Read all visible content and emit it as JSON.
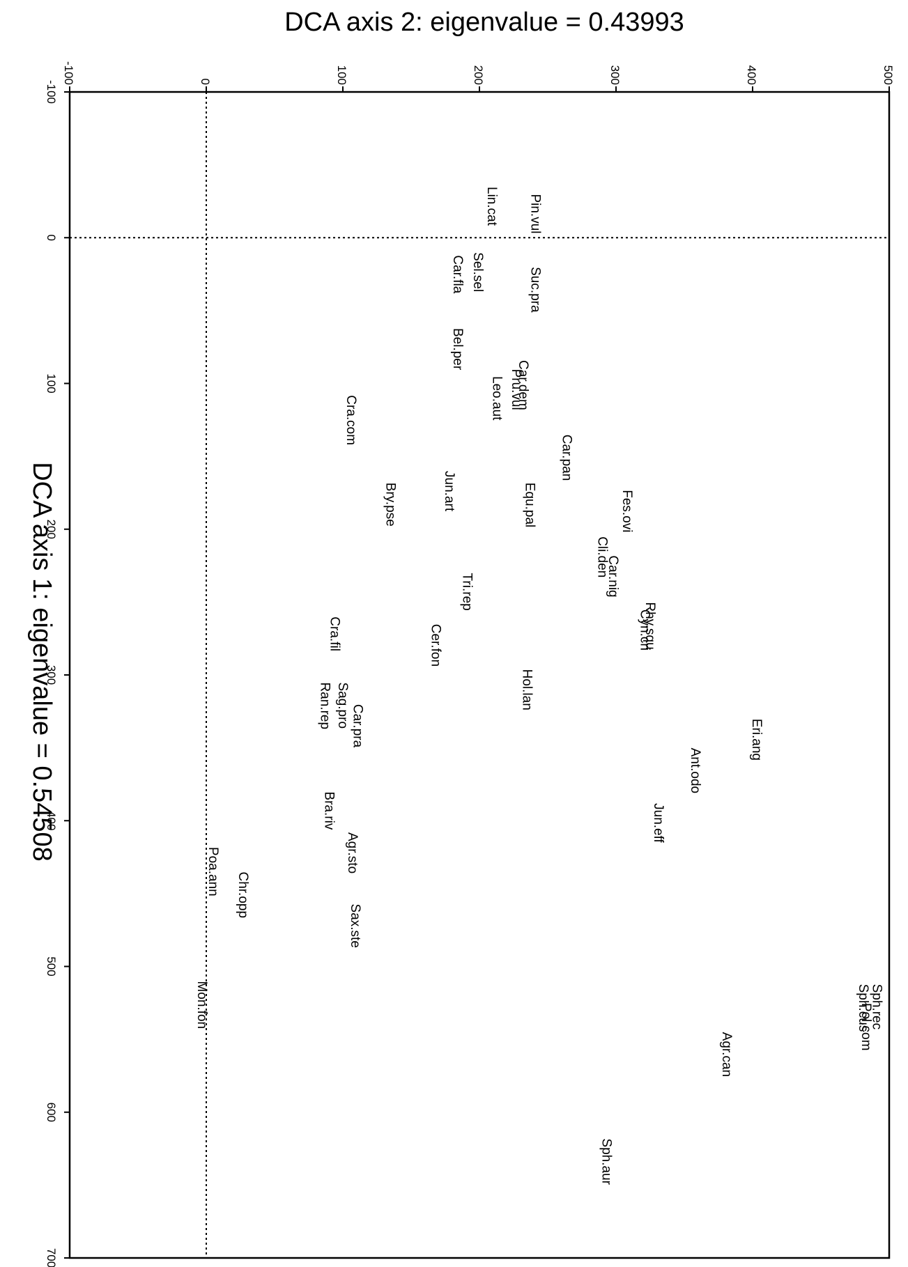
{
  "chart_data": {
    "type": "scatter",
    "orientation": "rotated-90-clockwise",
    "title": "DCA axis 2: eigenvalue = 0.43993",
    "ylabel": "DCA axis 1: eigenvalue = 0.54508",
    "axis1": {
      "label": "DCA axis 1: eigenvalue = 0.54508",
      "range": [
        -100,
        700
      ],
      "ticks": [
        -100,
        0,
        100,
        200,
        300,
        400,
        500,
        600,
        700
      ]
    },
    "axis2": {
      "label": "DCA axis 2: eigenvalue = 0.43993",
      "range": [
        -100,
        500
      ],
      "ticks": [
        -100,
        0,
        100,
        200,
        300,
        400,
        500
      ]
    },
    "reference_lines": {
      "axis1_zero": true,
      "axis2_zero": true,
      "style": "dotted"
    },
    "grid": false,
    "points": [
      {
        "label": "Lin.cat",
        "axis1": -35,
        "axis2": 206
      },
      {
        "label": "Pin.vul",
        "axis1": -30,
        "axis2": 238
      },
      {
        "label": "Suc.pra",
        "axis1": 20,
        "axis2": 238
      },
      {
        "label": "Sel.sel",
        "axis1": 10,
        "axis2": 196
      },
      {
        "label": "Car.fla",
        "axis1": 12,
        "axis2": 181
      },
      {
        "label": "Bel.per",
        "axis1": 62,
        "axis2": 181
      },
      {
        "label": "Car.dem",
        "axis1": 84,
        "axis2": 229
      },
      {
        "label": "Pru.vul",
        "axis1": 90,
        "axis2": 224
      },
      {
        "label": "Leo.aut",
        "axis1": 95,
        "axis2": 210
      },
      {
        "label": "Cra.com",
        "axis1": 108,
        "axis2": 103
      },
      {
        "label": "Car.pan",
        "axis1": 135,
        "axis2": 261
      },
      {
        "label": "Jun.art",
        "axis1": 160,
        "axis2": 175
      },
      {
        "label": "Equ.pal",
        "axis1": 168,
        "axis2": 234
      },
      {
        "label": "Bry.pse",
        "axis1": 168,
        "axis2": 132
      },
      {
        "label": "Fes.ovi",
        "axis1": 173,
        "axis2": 305
      },
      {
        "label": "Cli.den",
        "axis1": 205,
        "axis2": 287
      },
      {
        "label": "Car.nig",
        "axis1": 218,
        "axis2": 295
      },
      {
        "label": "Tri.rep",
        "axis1": 230,
        "axis2": 188
      },
      {
        "label": "Rhy.squ",
        "axis1": 250,
        "axis2": 322
      },
      {
        "label": "Cyn.cri",
        "axis1": 255,
        "axis2": 318
      },
      {
        "label": "Cra.fil",
        "axis1": 260,
        "axis2": 91
      },
      {
        "label": "Cer.fon",
        "axis1": 265,
        "axis2": 165
      },
      {
        "label": "Hol.lan",
        "axis1": 296,
        "axis2": 232
      },
      {
        "label": "Sag.pro",
        "axis1": 305,
        "axis2": 97
      },
      {
        "label": "Ran.rep",
        "axis1": 305,
        "axis2": 84
      },
      {
        "label": "Car.pra",
        "axis1": 320,
        "axis2": 108
      },
      {
        "label": "Eri.ang",
        "axis1": 330,
        "axis2": 400
      },
      {
        "label": "Ant.odo",
        "axis1": 350,
        "axis2": 355
      },
      {
        "label": "Bra.riv",
        "axis1": 380,
        "axis2": 87
      },
      {
        "label": "Jun.eff",
        "axis1": 388,
        "axis2": 328
      },
      {
        "label": "Agr.sto",
        "axis1": 408,
        "axis2": 104
      },
      {
        "label": "Poa.ann",
        "axis1": 418,
        "axis2": 2
      },
      {
        "label": "Chr.opp",
        "axis1": 435,
        "axis2": 24
      },
      {
        "label": "Sax.ste",
        "axis1": 457,
        "axis2": 106
      },
      {
        "label": "Mon.fon",
        "axis1": 510,
        "axis2": -6
      },
      {
        "label": "Sph.rec",
        "axis1": 512,
        "axis2": 488
      },
      {
        "label": "Sph.cus",
        "axis1": 512,
        "axis2": 478
      },
      {
        "label": "Pol.com",
        "axis1": 525,
        "axis2": 480
      },
      {
        "label": "Agr.can",
        "axis1": 545,
        "axis2": 378
      },
      {
        "label": "Sph.aur",
        "axis1": 618,
        "axis2": 290
      }
    ]
  }
}
